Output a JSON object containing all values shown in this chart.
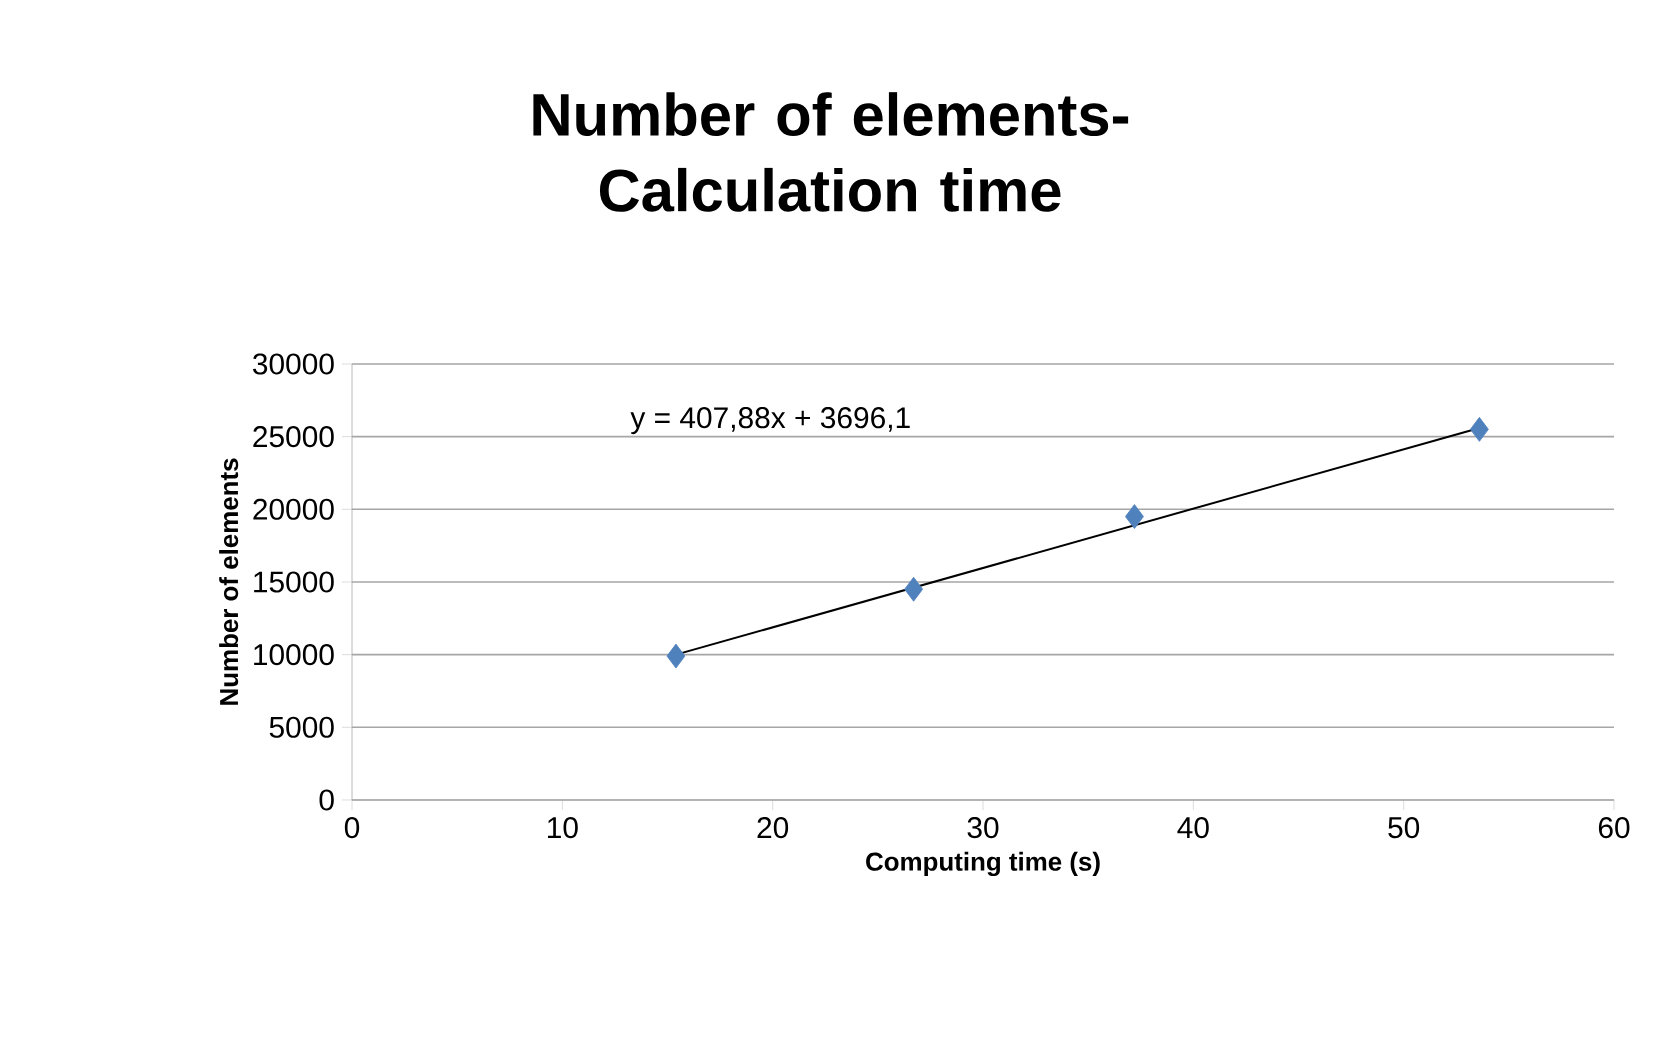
{
  "chart_data": {
    "type": "scatter",
    "title": "Number of elements-Calculation time",
    "xlabel": "Computing time (s)",
    "ylabel": "Number of elements",
    "series": [
      {
        "color": "#4f81bd",
        "x": [
          15.4,
          26.7,
          37.2,
          53.6
        ],
        "values": [
          9900,
          14500,
          19500,
          25500
        ],
        "marker": "diamond"
      },
      {
        "type": "line",
        "color": "#000000",
        "x": [
          15.4,
          53.6
        ],
        "values": [
          10000,
          25600
        ],
        "marker": "none"
      }
    ],
    "annotations": [
      "y = 407,88x + 3696,1"
    ],
    "xlim": [
      0,
      60
    ],
    "xticks": [
      0,
      10,
      20,
      30,
      40,
      50,
      60
    ],
    "ylim": [
      0,
      30000
    ],
    "yticks": [
      0,
      5000,
      10000,
      15000,
      20000,
      25000,
      30000
    ],
    "grid": "y"
  }
}
